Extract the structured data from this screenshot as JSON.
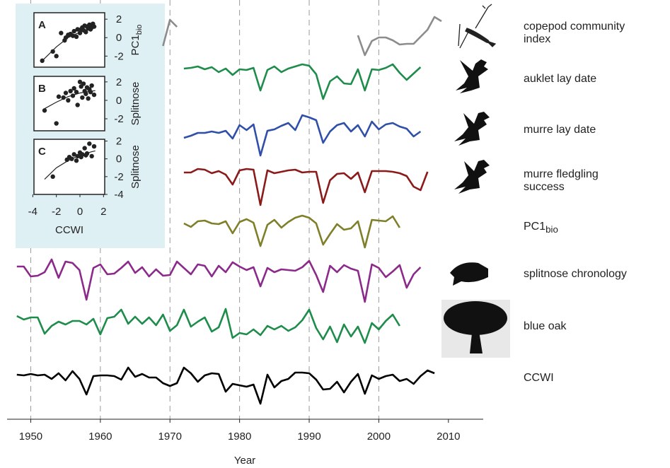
{
  "chart_data": [
    {
      "type": "line",
      "xlabel": "Year",
      "xlim": [
        1946.6,
        2015
      ],
      "xticks": [
        1950,
        1960,
        1970,
        1980,
        1990,
        2000,
        2010
      ],
      "grid_x": [
        1950,
        1960,
        1970,
        1980,
        1990,
        2000
      ],
      "series": [
        {
          "name": "copepod community index",
          "color": "#8c8c8c",
          "x": [
            1969,
            1970,
            1971,
            1972,
            1997,
            1998,
            1999,
            2000,
            2001,
            2002,
            2003,
            2004,
            2005,
            2006,
            2007,
            2008,
            2009
          ],
          "values": [
            -1.5,
            2.2,
            1.2,
            null,
            0.0,
            -2.8,
            -0.8,
            -0.3,
            -0.3,
            -0.7,
            -1.3,
            -1.2,
            -1.2,
            -0.2,
            0.8,
            2.6,
            2.0
          ]
        },
        {
          "name": "auklet lay date",
          "color": "#1e8c4a",
          "x": [
            1972,
            1973,
            1974,
            1975,
            1976,
            1977,
            1978,
            1979,
            1980,
            1981,
            1982,
            1983,
            1984,
            1985,
            1986,
            1987,
            1988,
            1989,
            1990,
            1991,
            1992,
            1993,
            1994,
            1995,
            1996,
            1997,
            1998,
            1999,
            2000,
            2001,
            2002,
            2003,
            2004,
            2005,
            2006
          ],
          "values": [
            0.3,
            0.4,
            0.6,
            0.2,
            0.5,
            -0.2,
            0.3,
            -0.6,
            0.2,
            0.1,
            0.4,
            -2.8,
            0.1,
            0.6,
            -0.2,
            0.3,
            0.6,
            0.9,
            0.7,
            -0.5,
            -4.0,
            -1.5,
            -0.8,
            -1.8,
            -1.9,
            0.2,
            -2.8,
            0.2,
            0.1,
            0.4,
            0.9,
            -0.3,
            -1.3,
            -0.4,
            0.5
          ]
        },
        {
          "name": "murre lay date",
          "color": "#2f4fa8",
          "x": [
            1972,
            1973,
            1974,
            1975,
            1976,
            1977,
            1978,
            1979,
            1980,
            1981,
            1982,
            1983,
            1984,
            1985,
            1986,
            1987,
            1988,
            1989,
            1990,
            1991,
            1992,
            1993,
            1994,
            1995,
            1996,
            1997,
            1998,
            1999,
            2000,
            2001,
            2002,
            2003,
            2004,
            2005,
            2006
          ],
          "values": [
            -1.5,
            -1.2,
            -0.8,
            -0.8,
            -0.6,
            -0.8,
            -0.5,
            -1.6,
            0.3,
            -0.4,
            0.4,
            -4.0,
            -0.5,
            -0.3,
            0.2,
            0.6,
            -0.4,
            1.7,
            1.4,
            1.0,
            -2.2,
            -0.6,
            0.3,
            0.6,
            -0.6,
            0.3,
            -1.3,
            0.8,
            -0.3,
            0.4,
            0.6,
            0.1,
            -0.2,
            -1.3,
            -0.6
          ]
        },
        {
          "name": "murre fledgling success",
          "color": "#8b1a1a",
          "x": [
            1972,
            1973,
            1974,
            1975,
            1976,
            1977,
            1978,
            1979,
            1980,
            1981,
            1982,
            1983,
            1984,
            1985,
            1986,
            1987,
            1988,
            1989,
            1990,
            1991,
            1992,
            1993,
            1994,
            1995,
            1996,
            1997,
            1998,
            1999,
            2000,
            2001,
            2002,
            2003,
            2004,
            2005,
            2006,
            2007
          ],
          "values": [
            0.3,
            0.3,
            0.8,
            0.7,
            0.2,
            0.5,
            0.0,
            -1.4,
            0.6,
            0.8,
            0.7,
            -4.3,
            0.6,
            0.2,
            0.4,
            0.6,
            0.7,
            0.3,
            0.4,
            0.4,
            -4.0,
            -0.8,
            0.1,
            0.2,
            -0.6,
            0.3,
            -2.5,
            0.5,
            0.5,
            0.5,
            0.4,
            0.2,
            -0.2,
            -1.7,
            -2.2,
            0.4
          ]
        },
        {
          "name": "PC1",
          "name_sub": "bio",
          "color": "#7f7f2a",
          "x": [
            1972,
            1973,
            1974,
            1975,
            1976,
            1977,
            1978,
            1979,
            1980,
            1981,
            1982,
            1983,
            1984,
            1985,
            1986,
            1987,
            1988,
            1989,
            1990,
            1991,
            1992,
            1993,
            1994,
            1995,
            1996,
            1997,
            1998,
            1999,
            2000,
            2001,
            2002,
            2003
          ],
          "values": [
            0.2,
            -0.3,
            0.5,
            0.6,
            0.2,
            0.1,
            0.5,
            -1.2,
            0.4,
            0.8,
            0.3,
            -3.0,
            0.0,
            0.7,
            -0.4,
            0.4,
            1.0,
            1.3,
            1.0,
            0.2,
            -2.8,
            -1.3,
            0.1,
            -0.7,
            -0.5,
            0.5,
            -3.2,
            0.7,
            0.6,
            0.5,
            1.2,
            -0.4
          ]
        },
        {
          "name": "splitnose chronology",
          "color": "#8b2a8b",
          "x": [
            1948,
            1949,
            1950,
            1951,
            1952,
            1953,
            1954,
            1955,
            1956,
            1957,
            1958,
            1959,
            1960,
            1961,
            1962,
            1963,
            1964,
            1965,
            1966,
            1967,
            1968,
            1969,
            1970,
            1971,
            1972,
            1973,
            1974,
            1975,
            1976,
            1977,
            1978,
            1979,
            1980,
            1981,
            1982,
            1983,
            1984,
            1985,
            1986,
            1987,
            1988,
            1989,
            1990,
            1991,
            1992,
            1993,
            1994,
            1995,
            1996,
            1997,
            1998,
            1999,
            2000,
            2001,
            2002,
            2003,
            2004,
            2005,
            2006
          ],
          "values": [
            0.8,
            0.8,
            -0.6,
            -0.5,
            0.0,
            1.8,
            -0.8,
            1.5,
            1.3,
            0.3,
            -3.9,
            0.6,
            1.1,
            -0.3,
            -0.2,
            0.6,
            1.5,
            -0.1,
            0.7,
            -0.6,
            0.4,
            -0.5,
            -0.4,
            1.5,
            0.6,
            -0.3,
            1.1,
            0.9,
            -0.6,
            0.9,
            0.0,
            1.4,
            0.8,
            0.3,
            0.7,
            -2.0,
            0.6,
            0.0,
            0.4,
            0.3,
            0.2,
            0.7,
            1.6,
            -0.4,
            -2.8,
            0.9,
            0.0,
            1.0,
            0.5,
            0.2,
            -4.2,
            1.1,
            0.6,
            -0.7,
            0.1,
            1.0,
            -2.2,
            -0.3,
            0.7
          ]
        },
        {
          "name": "blue oak",
          "color": "#1e8c4a",
          "x": [
            1948,
            1949,
            1950,
            1951,
            1952,
            1953,
            1954,
            1955,
            1956,
            1957,
            1958,
            1959,
            1960,
            1961,
            1962,
            1963,
            1964,
            1965,
            1966,
            1967,
            1968,
            1969,
            1970,
            1971,
            1972,
            1973,
            1974,
            1975,
            1976,
            1977,
            1978,
            1979,
            1980,
            1981,
            1982,
            1983,
            1984,
            1985,
            1986,
            1987,
            1988,
            1989,
            1990,
            1991,
            1992,
            1993,
            1994,
            1995,
            1996,
            1997,
            1998,
            1999,
            2000,
            2001,
            2002,
            2003
          ],
          "values": [
            0.8,
            0.3,
            0.6,
            0.6,
            -1.7,
            -0.6,
            0.0,
            -0.4,
            0.1,
            0.1,
            -0.4,
            0.4,
            -1.8,
            0.5,
            0.7,
            1.7,
            -0.3,
            0.7,
            -0.3,
            0.6,
            -0.5,
            1.0,
            -1.3,
            -0.5,
            1.7,
            -0.7,
            0.0,
            0.6,
            -1.4,
            -0.8,
            1.8,
            -2.3,
            -1.6,
            -1.8,
            -1.1,
            -1.9,
            -0.6,
            -1.1,
            -0.6,
            -1.3,
            -0.8,
            0.2,
            1.7,
            -0.9,
            -2.5,
            -0.7,
            -2.9,
            -0.4,
            -2.1,
            -0.7,
            -3.0,
            -0.2,
            -1.1,
            0.1,
            1.0,
            -0.6
          ]
        },
        {
          "name": "CCWI",
          "color": "#000000",
          "x": [
            1948,
            1949,
            1950,
            1951,
            1952,
            1953,
            1954,
            1955,
            1956,
            1957,
            1958,
            1959,
            1960,
            1961,
            1962,
            1963,
            1964,
            1965,
            1966,
            1967,
            1968,
            1969,
            1970,
            1971,
            1972,
            1973,
            1974,
            1975,
            1976,
            1977,
            1978,
            1979,
            1980,
            1981,
            1982,
            1983,
            1984,
            1985,
            1986,
            1987,
            1988,
            1989,
            1990,
            1991,
            1992,
            1993,
            1994,
            1995,
            1996,
            1997,
            1998,
            1999,
            2000,
            2001,
            2002,
            2003,
            2004,
            2005,
            2006,
            2007,
            2008
          ],
          "values": [
            0.3,
            0.2,
            0.4,
            0.2,
            0.3,
            -0.3,
            0.5,
            -0.5,
            0.8,
            -0.3,
            -2.5,
            0.1,
            0.2,
            0.2,
            0.1,
            -0.4,
            1.3,
            0.0,
            0.4,
            -0.1,
            -0.1,
            -0.9,
            -1.3,
            -0.9,
            1.3,
            0.5,
            -0.7,
            0.2,
            0.5,
            0.4,
            -2.1,
            -1.0,
            -1.2,
            -1.4,
            -1.1,
            -3.8,
            0.3,
            -1.5,
            -0.6,
            -0.3,
            0.6,
            0.6,
            0.5,
            -0.4,
            -1.8,
            -1.7,
            -0.7,
            -2.2,
            -0.7,
            0.4,
            -2.4,
            0.2,
            -0.3,
            0.1,
            0.3,
            -0.6,
            -0.3,
            -1.0,
            0.1,
            0.9,
            0.5
          ]
        }
      ]
    },
    {
      "type": "scatter",
      "panel": "A",
      "ylabel": "PC1",
      "ylabel_sub": "bio",
      "xlim": [
        -3.9,
        2.1
      ],
      "ylim": [
        -3.2,
        2.7
      ],
      "yticks": [
        2,
        0,
        -2
      ],
      "x": [
        -3.2,
        -2.3,
        -2.0,
        -1.6,
        -1.3,
        -1.2,
        -1.0,
        -0.8,
        -0.6,
        -0.5,
        -0.3,
        -0.2,
        0,
        0.1,
        0.2,
        0.3,
        0.4,
        0.5,
        0.6,
        0.7,
        0.8,
        0.9,
        1.0,
        1.1,
        1.2
      ],
      "y": [
        -2.5,
        -1.5,
        -2.0,
        0.5,
        -0.3,
        0.0,
        0.3,
        0.4,
        0.2,
        0.7,
        0.1,
        0.9,
        0.5,
        0.9,
        1.1,
        0.8,
        1.3,
        0.6,
        1.2,
        1.0,
        1.4,
        0.9,
        1.1,
        1.5,
        1.2
      ],
      "fit_x": [
        -3.2,
        -2,
        -1,
        0,
        1,
        1.4
      ],
      "fit_y": [
        -2.5,
        -1.0,
        0,
        0.6,
        1.1,
        1.2
      ]
    },
    {
      "type": "scatter",
      "panel": "B",
      "ylabel": "Splitnose",
      "xlim": [
        -3.9,
        2.1
      ],
      "ylim": [
        -3.3,
        2.6
      ],
      "yticks": [
        2,
        0,
        -2
      ],
      "x": [
        -3.0,
        -2.0,
        -1.8,
        -1.4,
        -1.2,
        -1.0,
        -0.8,
        -0.6,
        -0.5,
        -0.3,
        -0.2,
        0,
        0.1,
        0.2,
        0.3,
        0.4,
        0.5,
        0.6,
        0.7,
        0.8,
        0.9,
        1.0,
        1.2
      ],
      "y": [
        -1.1,
        -2.5,
        0.4,
        0.3,
        0.8,
        0.0,
        1.0,
        0.5,
        1.3,
        0.9,
        -0.5,
        2.0,
        1.5,
        0.3,
        1.8,
        1.0,
        0.7,
        1.4,
        0.2,
        1.2,
        0.9,
        1.6,
        0.6
      ],
      "fit_x": [
        -3,
        -2,
        -1,
        0,
        1,
        1.3
      ],
      "fit_y": [
        -0.9,
        -0.2,
        0.4,
        0.8,
        1.0,
        1.05
      ]
    },
    {
      "type": "scatter",
      "panel": "C",
      "ylabel": "Splitnose",
      "xlabel": "CCWI",
      "xlim": [
        -3.9,
        2.1
      ],
      "ylim": [
        -4,
        2.2
      ],
      "yticks": [
        2,
        0,
        -2,
        -4
      ],
      "xticks": [
        -4,
        -2,
        0,
        2
      ],
      "x": [
        -2.3,
        -1.1,
        -0.9,
        -0.7,
        -0.5,
        -0.3,
        -0.2,
        0,
        0.1,
        0.2,
        0.4,
        0.5,
        0.6,
        0.8,
        1.0,
        1.2
      ],
      "y": [
        -2.0,
        -0.1,
        0.2,
        0.0,
        0.5,
        -0.2,
        0.3,
        0.7,
        0.2,
        0.5,
        1.2,
        0.4,
        0.6,
        1.7,
        0.3,
        1.4
      ],
      "fit_x": [
        -3,
        -2,
        -1,
        0,
        1,
        1.3
      ],
      "fit_y": [
        -2.3,
        -1.0,
        -0.2,
        0.4,
        0.8,
        0.9
      ]
    }
  ]
}
